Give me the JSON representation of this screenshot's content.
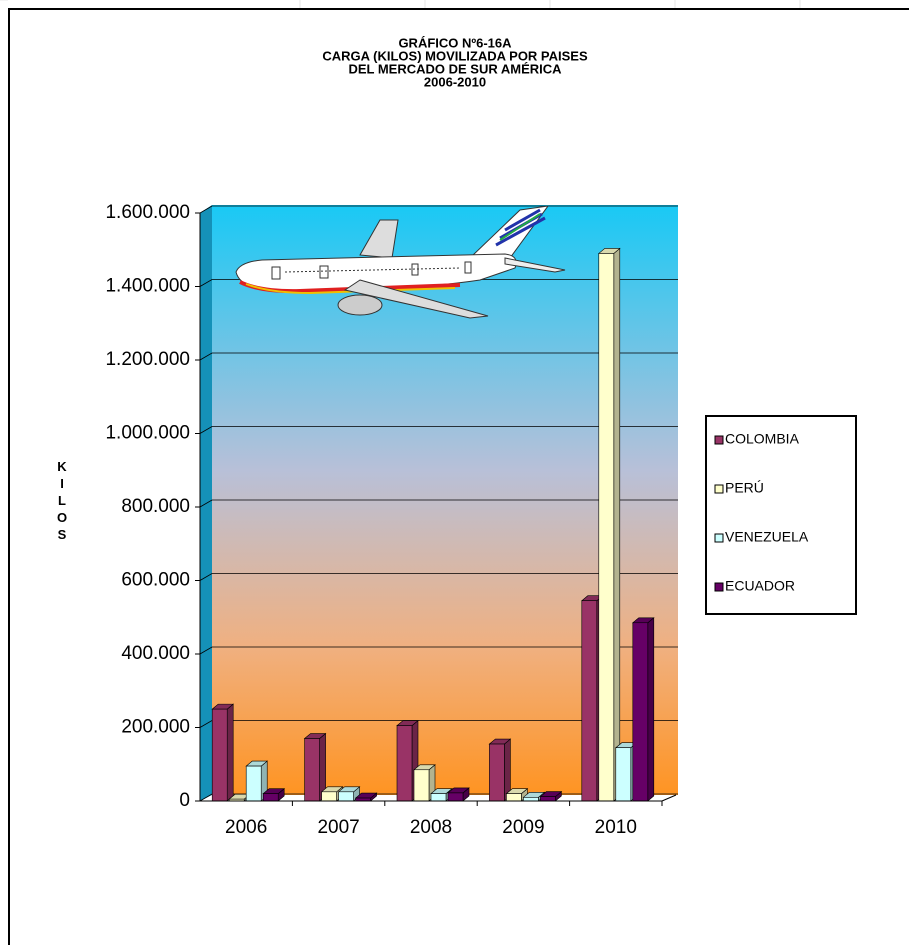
{
  "chart_data": {
    "type": "bar3d",
    "title": [
      "GRÁFICO Nº6-16A",
      "CARGA (KILOS) MOVILIZADA POR PAISES",
      "DEL MERCADO DE SUR AMÉRICA",
      "2006-2010"
    ],
    "y_label": "KILOS",
    "categories": [
      "2006",
      "2007",
      "2008",
      "2009",
      "2010"
    ],
    "series": [
      {
        "name": "COLOMBIA",
        "color": "#993366",
        "values": [
          250000,
          170000,
          205000,
          155000,
          545000
        ]
      },
      {
        "name": "PERÚ",
        "color": "#ffffcc",
        "values": [
          5000,
          25000,
          85000,
          20000,
          1490000
        ]
      },
      {
        "name": "VENEZUELA",
        "color": "#ccffff",
        "values": [
          95000,
          25000,
          20000,
          10000,
          145000
        ]
      },
      {
        "name": "ECUADOR",
        "color": "#660066",
        "values": [
          20000,
          8000,
          22000,
          12000,
          485000
        ]
      }
    ],
    "ylim": [
      0,
      1600000
    ],
    "yticks": [
      0,
      {
        "value": 200000,
        "label": "200.000"
      },
      {
        "value": 400000,
        "label": "400.000"
      },
      {
        "value": 600000,
        "label": "600.000"
      },
      {
        "value": 800000,
        "label": "800.000"
      },
      {
        "value": 1000000,
        "label": "1.000.000"
      },
      {
        "value": 1200000,
        "label": "1.200.000"
      },
      {
        "value": 1400000,
        "label": "1.400.000"
      },
      {
        "value": 1600000,
        "label": "1.600.000"
      }
    ],
    "grid": true,
    "legend": "right"
  }
}
